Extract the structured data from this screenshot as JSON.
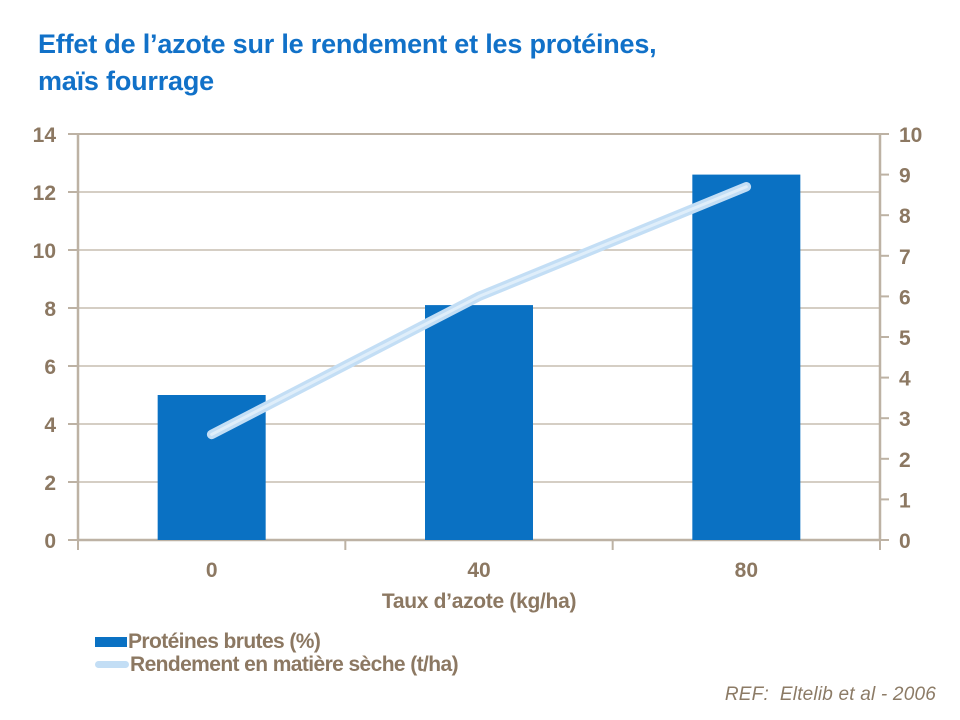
{
  "title": {
    "line1": "Effet de l’azote sur le rendement et les protéines,",
    "line2": "maïs fourrage"
  },
  "chart_data": {
    "type": "bar",
    "title": "Effet de l’azote sur le rendement et les protéines, maïs fourrage",
    "categories": [
      "0",
      "40",
      "80"
    ],
    "series": [
      {
        "name": "Protéines brutes (%)",
        "type": "bar",
        "axis": "left",
        "values": [
          5.0,
          8.1,
          12.6
        ],
        "color": "#0A71C3"
      },
      {
        "name": "Rendement en matière sèche (t/ha)",
        "type": "line",
        "axis": "right",
        "values": [
          2.6,
          6.0,
          8.7
        ],
        "color": "#C3DEF5"
      }
    ],
    "xlabel": "Taux d’azote (kg/ha)",
    "left_axis": {
      "min": 0,
      "max": 14,
      "step": 2
    },
    "right_axis": {
      "min": 0,
      "max": 10,
      "step": 1
    },
    "grid": true,
    "legend_position": "bottom-left"
  },
  "footer": {
    "ref": "REF:  Eltelib et al - 2006"
  },
  "colors": {
    "title_blue": "#1171C8",
    "bar_blue": "#0A71C3",
    "line_blue": "#C3DEF5",
    "line_highlight": "#E2F0FB",
    "axis_text": "#8C7862",
    "axis_line": "#BDB2A4",
    "grid_line": "#C7BDB0",
    "ref_text": "#8C7B66"
  }
}
